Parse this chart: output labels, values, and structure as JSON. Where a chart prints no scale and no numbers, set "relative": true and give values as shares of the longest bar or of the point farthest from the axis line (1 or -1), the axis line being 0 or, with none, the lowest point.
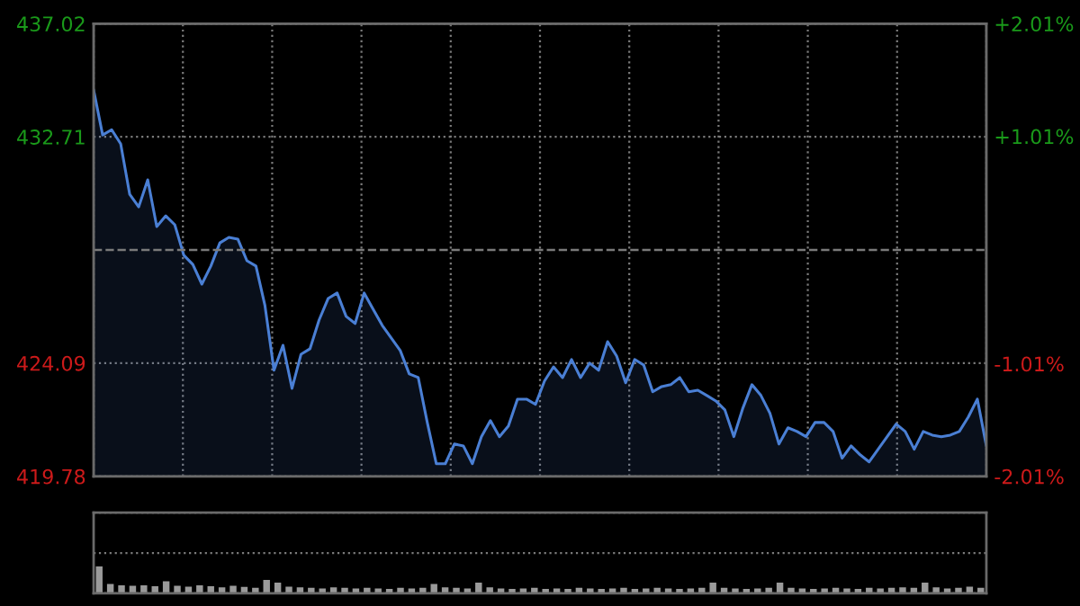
{
  "chart_data": [
    {
      "type": "area",
      "categories": [
        null,
        null,
        null,
        null,
        null,
        null,
        null,
        null,
        null,
        null,
        null,
        null,
        null,
        null,
        null,
        null,
        null,
        null,
        null,
        null,
        null,
        null,
        null,
        null,
        null,
        null,
        null,
        null,
        null,
        null,
        null,
        null,
        null,
        null,
        null,
        null,
        null,
        null,
        null,
        null,
        null,
        null,
        null,
        null,
        null,
        null,
        null,
        null,
        null,
        null,
        null,
        null,
        null,
        null,
        null,
        null,
        null,
        null,
        null,
        null,
        null,
        null,
        null,
        null,
        null,
        null,
        null,
        null,
        null,
        null,
        null,
        null,
        null,
        null,
        null,
        null,
        null,
        null,
        null,
        null,
        null,
        null,
        null,
        null,
        null,
        null,
        null,
        null,
        null,
        null,
        null,
        null,
        null,
        null,
        null,
        null,
        null,
        null,
        null,
        null
      ],
      "series": [
        {
          "color": "#4a7fd4",
          "values": [
            434.49,
            432.78,
            432.98,
            432.44,
            430.52,
            430.04,
            431.07,
            429.29,
            429.7,
            429.36,
            428.2,
            427.85,
            427.1,
            427.79,
            428.67,
            428.88,
            428.81,
            427.99,
            427.79,
            426.28,
            423.82,
            424.77,
            423.13,
            424.43,
            424.64,
            425.73,
            426.55,
            426.76,
            425.87,
            425.6,
            426.76,
            426.14,
            425.53,
            425.05,
            424.57,
            423.68,
            423.54,
            421.83,
            420.26,
            420.26,
            421.01,
            420.94,
            420.26,
            421.29,
            421.9,
            421.29,
            421.7,
            422.72,
            422.72,
            422.52,
            423.41,
            423.95,
            423.54,
            424.23,
            423.54,
            424.09,
            423.82,
            424.91,
            424.36,
            423.34,
            424.23,
            424.02,
            423.0,
            423.2,
            423.27,
            423.54,
            423.0,
            423.06,
            422.86,
            422.65,
            422.31,
            421.29,
            422.38,
            423.27,
            422.86,
            422.18,
            421.01,
            421.63,
            421.49,
            421.29,
            421.83,
            421.83,
            421.49,
            420.47,
            420.94,
            420.6,
            420.33,
            420.81,
            421.29,
            421.77,
            421.49,
            420.81,
            421.49,
            421.35,
            421.29,
            421.35,
            421.49,
            422.04,
            422.72,
            420.94
          ]
        }
      ],
      "ylim": [
        419.78,
        437.02
      ],
      "yticks": [
        419.78,
        424.09,
        432.71,
        437.02
      ],
      "y2lim": [
        -2.01,
        2.01
      ],
      "y2ticks": [
        {
          "value": -2.01,
          "label": "-2.01%"
        },
        {
          "value": -1.01,
          "label": "-1.01%"
        },
        {
          "value": 1.01,
          "label": "+1.01%"
        },
        {
          "value": 2.01,
          "label": "+2.01%"
        }
      ],
      "ref_lines": [
        {
          "axis": "y",
          "value": 428.4,
          "label": null,
          "line_style": "dashed"
        }
      ],
      "grid": true,
      "tick_labels": "y"
    },
    {
      "type": "bar",
      "relative": true,
      "grid": "y",
      "tick_labels": false,
      "categories": [
        null,
        null,
        null,
        null,
        null,
        null,
        null,
        null,
        null,
        null,
        null,
        null,
        null,
        null,
        null,
        null,
        null,
        null,
        null,
        null,
        null,
        null,
        null,
        null,
        null,
        null,
        null,
        null,
        null,
        null,
        null,
        null,
        null,
        null,
        null,
        null,
        null,
        null,
        null,
        null,
        null,
        null,
        null,
        null,
        null,
        null,
        null,
        null,
        null,
        null,
        null,
        null,
        null,
        null,
        null,
        null,
        null,
        null,
        null,
        null,
        null,
        null,
        null,
        null,
        null,
        null,
        null,
        null,
        null,
        null,
        null,
        null,
        null,
        null,
        null,
        null,
        null,
        null,
        null,
        null
      ],
      "series": [
        {
          "color": "#9a9a9a",
          "values": [
            1,
            0.35,
            0.3,
            0.28,
            0.3,
            0.26,
            0.45,
            0.28,
            0.25,
            0.3,
            0.26,
            0.22,
            0.28,
            0.24,
            0.2,
            0.5,
            0.4,
            0.25,
            0.22,
            0.2,
            0.18,
            0.22,
            0.2,
            0.18,
            0.2,
            0.18,
            0.16,
            0.2,
            0.18,
            0.2,
            0.35,
            0.22,
            0.2,
            0.18,
            0.4,
            0.22,
            0.18,
            0.16,
            0.18,
            0.2,
            0.16,
            0.18,
            0.16,
            0.2,
            0.18,
            0.16,
            0.18,
            0.2,
            0.16,
            0.18,
            0.2,
            0.18,
            0.16,
            0.18,
            0.2,
            0.4,
            0.2,
            0.18,
            0.16,
            0.18,
            0.2,
            0.4,
            0.2,
            0.18,
            0.16,
            0.18,
            0.2,
            0.18,
            0.16,
            0.2,
            0.18,
            0.2,
            0.22,
            0.2,
            0.4,
            0.22,
            0.18,
            0.2,
            0.25,
            0.2
          ]
        }
      ]
    }
  ]
}
